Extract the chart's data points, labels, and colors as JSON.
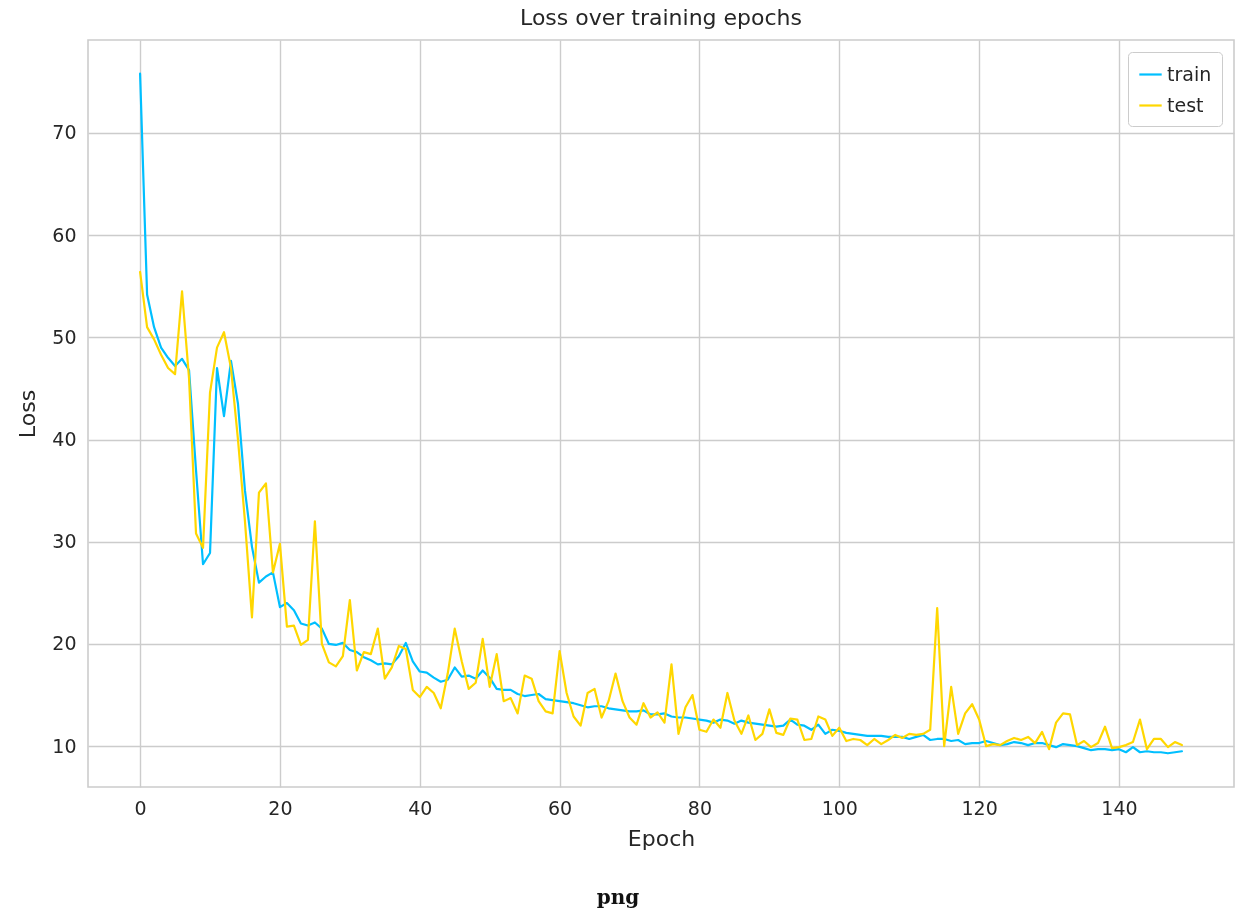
{
  "chart_data": {
    "type": "line",
    "title": "Loss over training epochs",
    "xlabel": "Epoch",
    "ylabel": "Loss",
    "annotations": [
      "png"
    ],
    "x": [
      0,
      1,
      2,
      3,
      4,
      5,
      6,
      7,
      8,
      9,
      10,
      11,
      12,
      13,
      14,
      15,
      16,
      17,
      18,
      19,
      20,
      21,
      22,
      23,
      24,
      25,
      26,
      27,
      28,
      29,
      30,
      31,
      32,
      33,
      34,
      35,
      36,
      37,
      38,
      39,
      40,
      41,
      42,
      43,
      44,
      45,
      46,
      47,
      48,
      49,
      50,
      51,
      52,
      53,
      54,
      55,
      56,
      57,
      58,
      59,
      60,
      61,
      62,
      63,
      64,
      65,
      66,
      67,
      68,
      69,
      70,
      71,
      72,
      73,
      74,
      75,
      76,
      77,
      78,
      79,
      80,
      81,
      82,
      83,
      84,
      85,
      86,
      87,
      88,
      89,
      90,
      91,
      92,
      93,
      94,
      95,
      96,
      97,
      98,
      99,
      100,
      101,
      102,
      103,
      104,
      105,
      106,
      107,
      108,
      109,
      110,
      111,
      112,
      113,
      114,
      115,
      116,
      117,
      118,
      119,
      120,
      121,
      122,
      123,
      124,
      125,
      126,
      127,
      128,
      129,
      130,
      131,
      132,
      133,
      134,
      135,
      136,
      137,
      138,
      139,
      140,
      141,
      142,
      143,
      144,
      145,
      146,
      147,
      148,
      149
    ],
    "series": [
      {
        "name": "train",
        "color": "#00bfff",
        "values": [
          75.8,
          54.2,
          51,
          49,
          48,
          47.2,
          47.9,
          46.8,
          37,
          27.8,
          28.9,
          47,
          42.3,
          47.7,
          43.5,
          35,
          29.5,
          26,
          26.6,
          27,
          23.6,
          24,
          23.3,
          22,
          21.8,
          22.1,
          21.5,
          20,
          19.9,
          20.1,
          19.4,
          19.2,
          18.7,
          18.4,
          18,
          18.1,
          18,
          18.8,
          20.1,
          18.3,
          17.3,
          17.2,
          16.7,
          16.3,
          16.5,
          17.7,
          16.8,
          16.9,
          16.6,
          17.4,
          16.7,
          15.6,
          15.5,
          15.5,
          15.1,
          14.9,
          15,
          15.1,
          14.6,
          14.5,
          14.4,
          14.3,
          14.2,
          14,
          13.8,
          13.9,
          13.9,
          13.7,
          13.6,
          13.5,
          13.4,
          13.4,
          13.5,
          13.1,
          13.1,
          13.2,
          12.9,
          12.8,
          12.8,
          12.7,
          12.6,
          12.5,
          12.3,
          12.6,
          12.5,
          12.2,
          12.5,
          12.3,
          12.2,
          12.1,
          12,
          11.9,
          12,
          12.6,
          12.1,
          12,
          11.6,
          12.1,
          11.2,
          11.6,
          11.5,
          11.3,
          11.2,
          11.1,
          11,
          11,
          11,
          10.9,
          10.9,
          10.9,
          10.7,
          10.9,
          11.1,
          10.6,
          10.7,
          10.7,
          10.5,
          10.6,
          10.2,
          10.3,
          10.3,
          10.5,
          10.3,
          10.1,
          10.2,
          10.4,
          10.3,
          10.1,
          10.3,
          10.3,
          10.1,
          9.9,
          10.2,
          10.1,
          10,
          9.8,
          9.6,
          9.7,
          9.7,
          9.6,
          9.7,
          9.4,
          9.9,
          9.4,
          9.5,
          9.4,
          9.4,
          9.3,
          9.4,
          9.5
        ]
      },
      {
        "name": "test",
        "color": "#ffd700",
        "values": [
          56.4,
          51,
          49.8,
          48.3,
          47,
          46.4,
          54.5,
          46,
          30.8,
          29.4,
          44.6,
          49,
          50.5,
          47,
          40,
          32,
          22.6,
          34.8,
          35.7,
          27,
          29.8,
          21.7,
          21.8,
          19.9,
          20.4,
          32,
          20,
          18.2,
          17.8,
          18.8,
          24.3,
          17.4,
          19.2,
          19,
          21.5,
          16.6,
          17.7,
          19.8,
          19.5,
          15.5,
          14.8,
          15.8,
          15.2,
          13.7,
          17.1,
          21.5,
          18.3,
          15.6,
          16.2,
          20.5,
          15.8,
          19,
          14.4,
          14.7,
          13.2,
          16.9,
          16.6,
          14.4,
          13.4,
          13.2,
          19.3,
          15.2,
          12.9,
          12,
          15.2,
          15.6,
          12.8,
          14.4,
          17.1,
          14.4,
          12.8,
          12.1,
          14.2,
          12.8,
          13.3,
          12.3,
          18,
          11.2,
          13.8,
          15,
          11.6,
          11.4,
          12.6,
          11.8,
          15.2,
          12.5,
          11.2,
          13,
          10.6,
          11.2,
          13.6,
          11.3,
          11.1,
          12.7,
          12.6,
          10.6,
          10.7,
          12.9,
          12.6,
          11,
          11.8,
          10.5,
          10.7,
          10.6,
          10.1,
          10.7,
          10.2,
          10.6,
          11.1,
          10.8,
          11.2,
          11.1,
          11.2,
          11.6,
          23.5,
          10,
          15.8,
          11.2,
          13.2,
          14.1,
          12.6,
          10,
          10.2,
          10.1,
          10.5,
          10.8,
          10.6,
          10.9,
          10.3,
          11.4,
          9.7,
          12.3,
          13.2,
          13.1,
          10.1,
          10.5,
          9.9,
          10.3,
          11.9,
          9.8,
          9.9,
          10.1,
          10.4,
          12.6,
          9.7,
          10.7,
          10.7,
          9.9,
          10.4,
          10.1
        ]
      }
    ],
    "xlim": [
      -7.45,
      156.45
    ],
    "xticks": [
      0,
      20,
      40,
      60,
      80,
      100,
      120,
      140
    ],
    "ylim": [
      6,
      79.1
    ],
    "yticks": [
      10,
      20,
      30,
      40,
      50,
      60,
      70
    ],
    "grid": true,
    "legend": "top right",
    "marker": "none",
    "line_style": "solid"
  }
}
